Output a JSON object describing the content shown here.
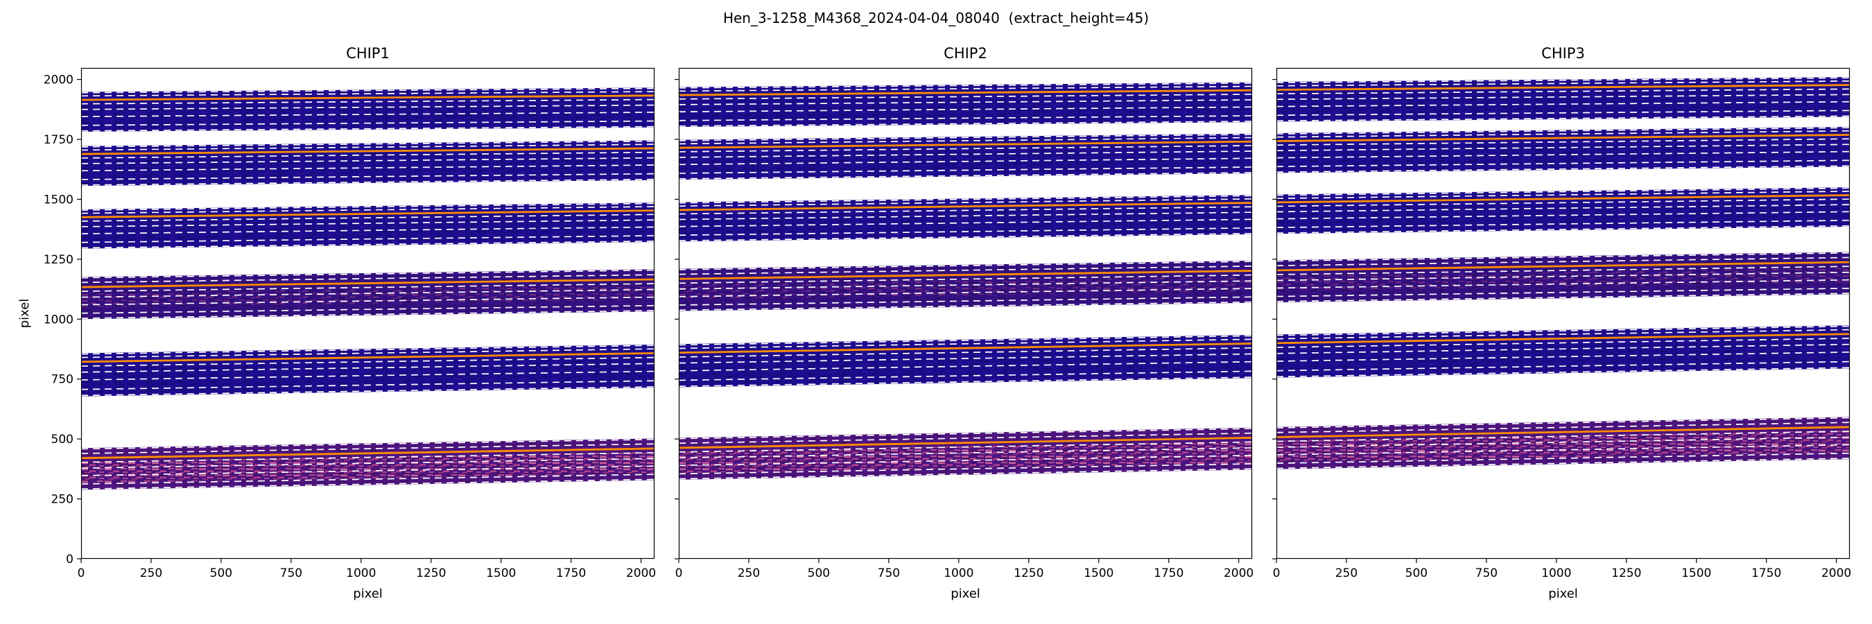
{
  "colors": {
    "background": "#ffffff",
    "text": "#000000",
    "spine": "#000000",
    "trace": "#ff8c00",
    "dash": "#ffffff",
    "band_indigo": "#1e0c8e",
    "band_violet": "#351080",
    "band_pink": "#4e147d",
    "speckle_bright": "#e26aa0",
    "speckle_medium": "#b84585"
  },
  "chart_data": {
    "type": "heatmap",
    "title": "Hen_3-1258_M4368_2024-04-04_08040  (extract_height=45)",
    "extract_height": 45,
    "xlabel": "pixel",
    "ylabel": "pixel",
    "xlim": [
      0,
      2048
    ],
    "ylim": [
      0,
      2048
    ],
    "x_ticks": [
      0,
      250,
      500,
      750,
      1000,
      1250,
      1500,
      1750,
      2000
    ],
    "y_ticks": [
      0,
      250,
      500,
      750,
      1000,
      1250,
      1500,
      1750,
      2000
    ],
    "legend": "none",
    "grid": false,
    "description": "Echelle spectral order extraction regions on three detector chips; dark bands are the 2D spectrum image swaths, orange solid lines are order trace centers, white dashed lines are extraction window boundaries (extract_height=45).",
    "tones": {
      "indigo": {
        "fill": "#1e0c8e"
      },
      "violet": {
        "fill": "#351080",
        "stripe": [
          0.28,
          0.62
        ],
        "stripe_opacity": 0.8,
        "speckle": "med"
      },
      "pink": {
        "fill": "#4e147d",
        "stripe": [
          0.16,
          0.68
        ],
        "stripe_opacity": 1.0,
        "speckle": "bright"
      }
    },
    "line_patterns": {
      "std": [
        {
          "f": 0.02,
          "t": "dash"
        },
        {
          "f": 0.16,
          "t": "dash"
        },
        {
          "f": 0.38,
          "t": "dash"
        },
        {
          "f": 0.56,
          "t": "dash"
        },
        {
          "f": 0.7,
          "t": "dash"
        },
        {
          "f": 0.8,
          "t": "trace"
        },
        {
          "f": 0.9,
          "t": "dash"
        },
        {
          "f": 0.98,
          "t": "dash"
        }
      ],
      "speck": [
        {
          "f": 0.02,
          "t": "dash"
        },
        {
          "f": 0.14,
          "t": "dash"
        },
        {
          "f": 0.34,
          "t": "dash"
        },
        {
          "f": 0.52,
          "t": "dash"
        },
        {
          "f": 0.66,
          "t": "dash"
        },
        {
          "f": 0.76,
          "t": "trace"
        },
        {
          "f": 0.87,
          "t": "dash"
        },
        {
          "f": 0.98,
          "t": "dash"
        }
      ]
    },
    "panels": [
      {
        "label": "CHIP1",
        "bands": [
          {
            "y0": 288,
            "y1": 462,
            "rise": 40,
            "tone": "pink",
            "pattern": "speck"
          },
          {
            "y0": 678,
            "y1": 858,
            "rise": 36,
            "tone": "indigo",
            "pattern": "std"
          },
          {
            "y0": 1000,
            "y1": 1176,
            "rise": 32,
            "tone": "violet",
            "pattern": "speck"
          },
          {
            "y0": 1294,
            "y1": 1458,
            "rise": 28,
            "tone": "indigo",
            "pattern": "std"
          },
          {
            "y0": 1556,
            "y1": 1722,
            "rise": 24,
            "tone": "indigo",
            "pattern": "std"
          },
          {
            "y0": 1782,
            "y1": 1948,
            "rise": 18,
            "tone": "indigo",
            "pattern": "std"
          }
        ]
      },
      {
        "label": "CHIP2",
        "bands": [
          {
            "y0": 330,
            "y1": 505,
            "rise": 42,
            "tone": "pink",
            "pattern": "speck"
          },
          {
            "y0": 716,
            "y1": 896,
            "rise": 38,
            "tone": "indigo",
            "pattern": "std"
          },
          {
            "y0": 1034,
            "y1": 1210,
            "rise": 34,
            "tone": "violet",
            "pattern": "speck"
          },
          {
            "y0": 1324,
            "y1": 1488,
            "rise": 30,
            "tone": "indigo",
            "pattern": "std"
          },
          {
            "y0": 1582,
            "y1": 1748,
            "rise": 26,
            "tone": "indigo",
            "pattern": "std"
          },
          {
            "y0": 1802,
            "y1": 1968,
            "rise": 20,
            "tone": "indigo",
            "pattern": "std"
          }
        ]
      },
      {
        "label": "CHIP3",
        "bands": [
          {
            "y0": 374,
            "y1": 550,
            "rise": 42,
            "tone": "pink",
            "pattern": "speck"
          },
          {
            "y0": 756,
            "y1": 936,
            "rise": 38,
            "tone": "indigo",
            "pattern": "std"
          },
          {
            "y0": 1070,
            "y1": 1246,
            "rise": 34,
            "tone": "violet",
            "pattern": "speck"
          },
          {
            "y0": 1356,
            "y1": 1520,
            "rise": 30,
            "tone": "indigo",
            "pattern": "std"
          },
          {
            "y0": 1610,
            "y1": 1776,
            "rise": 26,
            "tone": "indigo",
            "pattern": "std"
          },
          {
            "y0": 1824,
            "y1": 1990,
            "rise": 20,
            "tone": "indigo",
            "pattern": "std"
          }
        ]
      }
    ]
  }
}
